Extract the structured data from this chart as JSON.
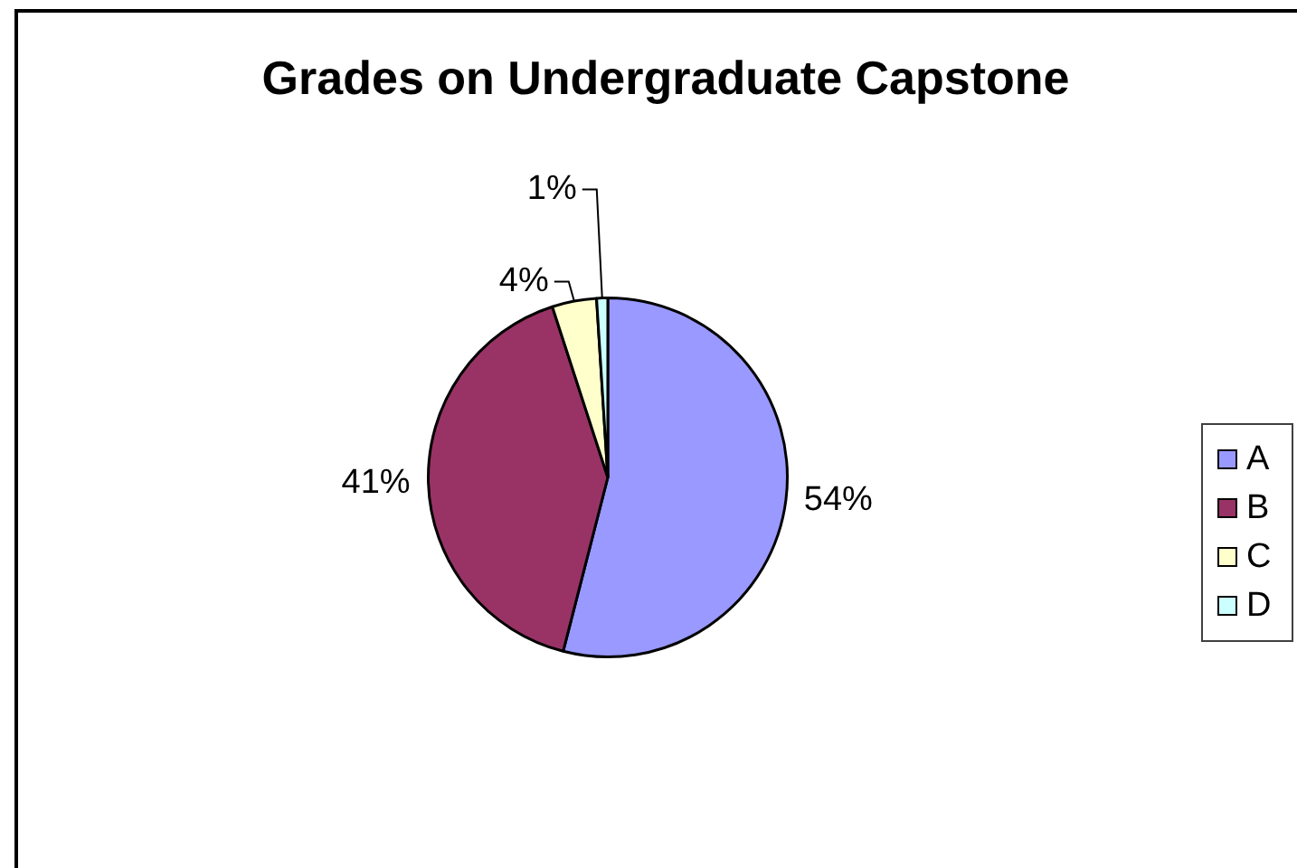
{
  "chart_data": {
    "type": "pie",
    "title": "Grades on Undergraduate Capstone",
    "categories": [
      "A",
      "B",
      "C",
      "D"
    ],
    "values": [
      54,
      41,
      4,
      1
    ],
    "colors": [
      "#9999ff",
      "#993366",
      "#ffffcc",
      "#ccffff"
    ],
    "value_labels": [
      "54%",
      "41%",
      "4%",
      "1%"
    ],
    "legend": "right"
  }
}
